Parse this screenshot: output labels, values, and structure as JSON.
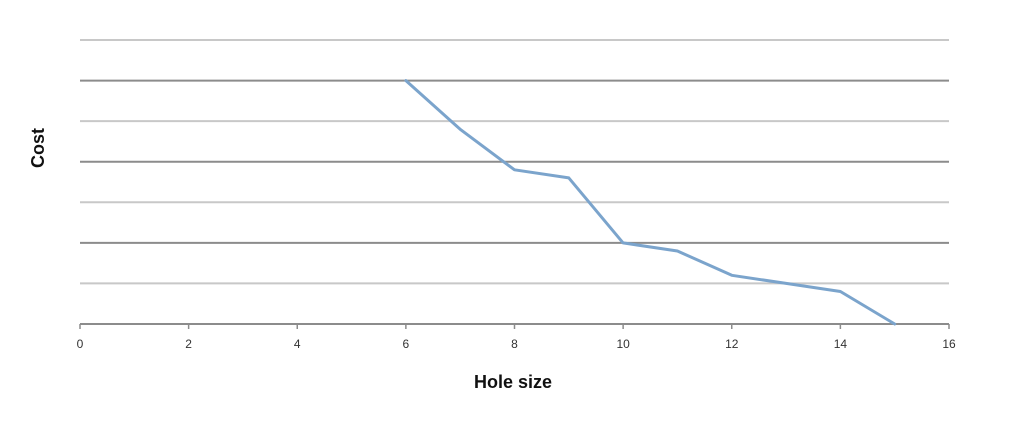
{
  "chart_data": {
    "type": "line",
    "title": "",
    "xlabel": "Hole size",
    "ylabel": "Cost",
    "xlim": [
      0,
      16
    ],
    "ylim": [
      0,
      7
    ],
    "x_ticks": [
      0,
      2,
      4,
      6,
      8,
      10,
      12,
      14,
      16
    ],
    "y_ticks_labeled": false,
    "grid": {
      "horizontal": true,
      "vertical": false,
      "count": 7
    },
    "legend": "none",
    "colors": {
      "series": "#7ba4cc",
      "grid_light": "#c8c8c8",
      "grid_dark": "#8c8c8c",
      "axis": "#8c8c8c"
    },
    "series": [
      {
        "x": [
          6,
          7,
          8,
          9,
          10,
          11,
          12,
          13,
          14,
          15
        ],
        "y": [
          6.0,
          4.8,
          3.8,
          3.6,
          2.0,
          1.8,
          1.2,
          1.0,
          0.8,
          0.0
        ]
      }
    ]
  }
}
